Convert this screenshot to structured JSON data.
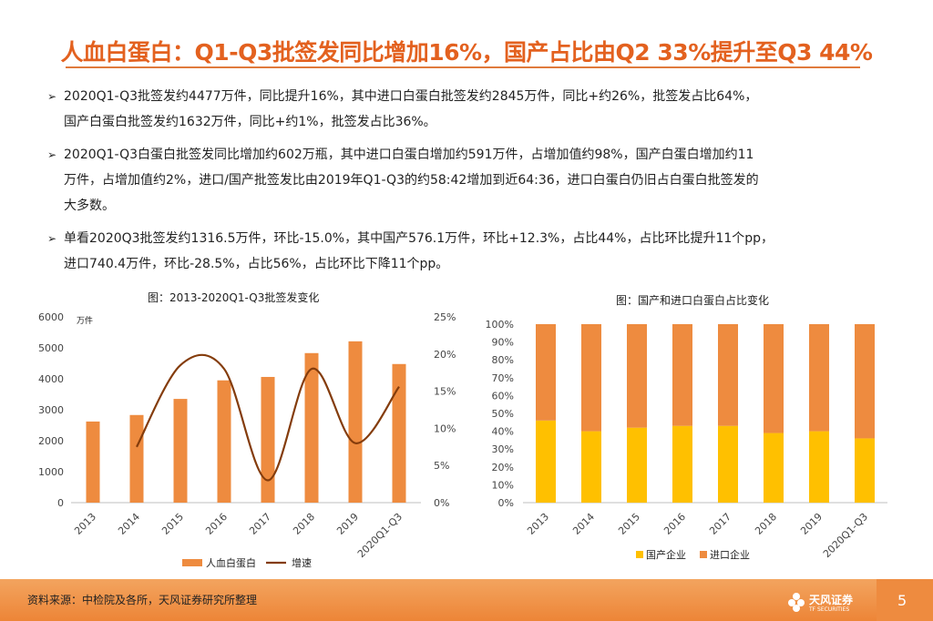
{
  "title": "人血白蛋白：Q1-Q3批签发同比增加16%，国产占比由Q2 33%提升至Q3 44%",
  "bullets": [
    {
      "arrow": "➢",
      "lines": [
        "2020Q1-Q3批签发约4477万件，同比提升16%，其中进口白蛋白批签发约2845万件，同比+约26%，批签发占比64%，",
        "国产白蛋白批签发约1632万件，同比+约1%，批签发占比36%。"
      ]
    },
    {
      "arrow": "➢",
      "lines": [
        "2020Q1-Q3白蛋白批签发同比增加约602万瓶，其中进口白蛋白增加约591万件，占增加值约98%，国产白蛋白增加约11",
        "万件，占增加值约2%，进口/国产批签发比由2019年Q1-Q3的约58:42增加到近64:36，进口白蛋白仍旧占白蛋白批签发的",
        "大多数。"
      ]
    },
    {
      "arrow": "➢",
      "lines": [
        "单看2020Q3批签发约1316.5万件，环比-15.0%，其中国产576.1万件，环比+12.3%，占比44%，占比环比提升11个pp，",
        "进口740.4万件，环比-28.5%，占比56%，占比环比下降11个pp。"
      ]
    }
  ],
  "chart_data": [
    {
      "type": "bar",
      "title": "图：2013-2020Q1-Q3批签发变化",
      "categories": [
        "2013",
        "2014",
        "2015",
        "2016",
        "2017",
        "2018",
        "2019",
        "2020Q1-Q3"
      ],
      "series": [
        {
          "name": "人血白蛋白",
          "kind": "bar",
          "axis": "left",
          "color": "#ee8b3f",
          "values": [
            2620,
            2830,
            3350,
            3950,
            4060,
            4830,
            5210,
            4477
          ]
        },
        {
          "name": "增速",
          "kind": "line",
          "axis": "right",
          "color": "#843c0c",
          "values": [
            null,
            7.5,
            18.5,
            18.0,
            3.0,
            18.0,
            8.0,
            15.6
          ]
        }
      ],
      "ylabel": "万件",
      "ylim": [
        0,
        6000
      ],
      "yticks": [
        "0",
        "1000",
        "2000",
        "3000",
        "4000",
        "5000",
        "6000"
      ],
      "y2lim": [
        0,
        25
      ],
      "y2ticks": [
        "0%",
        "5%",
        "10%",
        "15%",
        "20%",
        "25%"
      ],
      "legend": [
        "人血白蛋白",
        "增速"
      ]
    },
    {
      "type": "bar",
      "stacked": true,
      "title": "图：国产和进口白蛋白占比变化",
      "categories": [
        "2013",
        "2014",
        "2015",
        "2016",
        "2017",
        "2018",
        "2019",
        "2020Q1-Q3"
      ],
      "series": [
        {
          "name": "国产企业",
          "color": "#ffc000",
          "values": [
            46,
            40,
            42,
            43,
            43,
            39,
            40,
            36
          ]
        },
        {
          "name": "进口企业",
          "color": "#ee8b3f",
          "values": [
            54,
            60,
            58,
            57,
            57,
            61,
            60,
            64
          ]
        }
      ],
      "ylim": [
        0,
        100
      ],
      "yticks": [
        "0%",
        "10%",
        "20%",
        "30%",
        "40%",
        "50%",
        "60%",
        "70%",
        "80%",
        "90%",
        "100%"
      ],
      "legend": [
        "国产企业",
        "进口企业"
      ]
    }
  ],
  "footer": {
    "source": "资料来源：中检院及各所，天风证券研究所整理",
    "brand": "天风证券",
    "brand_sub": "TF SECURITIES",
    "page": "5"
  },
  "colors": {
    "accent": "#e3611f",
    "bar": "#ee8b3f",
    "line": "#843c0c",
    "domestic": "#ffc000"
  }
}
